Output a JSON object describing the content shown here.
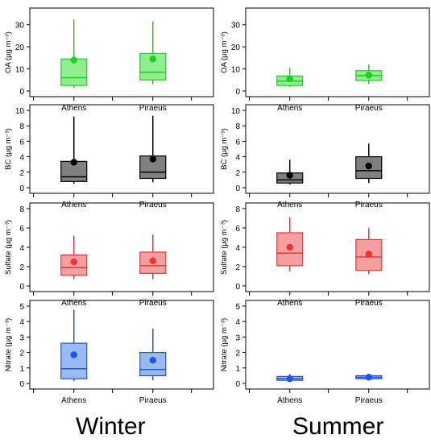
{
  "chart_data": [
    {
      "type": "box",
      "season": "Winter",
      "ylabel": "OA (µg m⁻³)",
      "categories": [
        "Athens",
        "Piraeus"
      ],
      "ylim": [
        0,
        35
      ],
      "yticks": [
        0,
        10,
        20,
        30
      ],
      "color": "#22cc22",
      "fill": "#90ee90",
      "boxes": [
        {
          "min": 1.5,
          "q1": 2.5,
          "median": 6.0,
          "q3": 14.5,
          "max": 32.5,
          "mean": 14.0
        },
        {
          "min": 3.0,
          "q1": 5.0,
          "median": 8.5,
          "q3": 17.0,
          "max": 31.5,
          "mean": 14.5
        }
      ]
    },
    {
      "type": "box",
      "season": "Summer",
      "ylabel": "OA (µg m⁻³)",
      "categories": [
        "Athens",
        "Piraeus"
      ],
      "ylim": [
        0,
        35
      ],
      "yticks": [
        0,
        10,
        20,
        30
      ],
      "color": "#22cc22",
      "fill": "#90ee90",
      "boxes": [
        {
          "min": 1.8,
          "q1": 2.5,
          "median": 4.5,
          "q3": 6.8,
          "max": 10.5,
          "mean": 5.5
        },
        {
          "min": 3.2,
          "q1": 4.8,
          "median": 7.0,
          "q3": 9.2,
          "max": 12.0,
          "mean": 7.2
        }
      ]
    },
    {
      "type": "box",
      "season": "Winter",
      "ylabel": "BC (µg m⁻³)",
      "categories": [
        "Athens",
        "Piraeus"
      ],
      "ylim": [
        0,
        10
      ],
      "yticks": [
        0,
        2,
        4,
        6,
        8,
        10
      ],
      "color": "#000000",
      "fill": "#808080",
      "boxes": [
        {
          "min": 0.5,
          "q1": 0.8,
          "median": 1.4,
          "q3": 3.4,
          "max": 9.2,
          "mean": 3.3
        },
        {
          "min": 0.7,
          "q1": 1.2,
          "median": 2.0,
          "q3": 4.1,
          "max": 9.3,
          "mean": 3.7
        }
      ]
    },
    {
      "type": "box",
      "season": "Summer",
      "ylabel": "BC (µg m⁻³)",
      "categories": [
        "Athens",
        "Piraeus"
      ],
      "ylim": [
        0,
        10
      ],
      "yticks": [
        0,
        2,
        4,
        6,
        8,
        10
      ],
      "color": "#000000",
      "fill": "#808080",
      "boxes": [
        {
          "min": 0.4,
          "q1": 0.6,
          "median": 1.0,
          "q3": 1.9,
          "max": 3.6,
          "mean": 1.6
        },
        {
          "min": 0.6,
          "q1": 1.2,
          "median": 2.2,
          "q3": 4.0,
          "max": 5.7,
          "mean": 2.8
        }
      ]
    },
    {
      "type": "box",
      "season": "Winter",
      "ylabel": "Sulfate (µg m⁻³)",
      "categories": [
        "Athens",
        "Piraeus"
      ],
      "ylim": [
        0,
        8
      ],
      "yticks": [
        0,
        2,
        4,
        6,
        8
      ],
      "color": "#ee3333",
      "fill": "#f4a0a0",
      "boxes": [
        {
          "min": 0.7,
          "q1": 1.1,
          "median": 1.9,
          "q3": 3.2,
          "max": 5.2,
          "mean": 2.5
        },
        {
          "min": 0.7,
          "q1": 1.3,
          "median": 2.1,
          "q3": 3.5,
          "max": 5.3,
          "mean": 2.6
        }
      ]
    },
    {
      "type": "box",
      "season": "Summer",
      "ylabel": "Sulfate (µg m⁻³)",
      "categories": [
        "Athens",
        "Piraeus"
      ],
      "ylim": [
        0,
        8
      ],
      "yticks": [
        0,
        2,
        4,
        6,
        8
      ],
      "color": "#ee3333",
      "fill": "#f4a0a0",
      "boxes": [
        {
          "min": 1.5,
          "q1": 2.1,
          "median": 3.4,
          "q3": 5.5,
          "max": 7.1,
          "mean": 4.0
        },
        {
          "min": 1.2,
          "q1": 1.6,
          "median": 3.0,
          "q3": 4.8,
          "max": 6.0,
          "mean": 3.3
        }
      ]
    },
    {
      "type": "box",
      "season": "Winter",
      "ylabel": "Nitrate (µg m⁻³)",
      "categories": [
        "Athens",
        "Piraeus"
      ],
      "ylim": [
        0,
        5
      ],
      "yticks": [
        0,
        1,
        2,
        3,
        4,
        5
      ],
      "color": "#2255dd",
      "fill": "#99bbf2",
      "boxes": [
        {
          "min": 0.15,
          "q1": 0.3,
          "median": 0.95,
          "q3": 2.6,
          "max": 4.75,
          "mean": 1.85
        },
        {
          "min": 0.2,
          "q1": 0.5,
          "median": 0.9,
          "q3": 2.0,
          "max": 3.55,
          "mean": 1.5
        }
      ]
    },
    {
      "type": "box",
      "season": "Summer",
      "ylabel": "Nitrate (µg m⁻³)",
      "categories": [
        "Athens",
        "Piraeus"
      ],
      "ylim": [
        0,
        5
      ],
      "yticks": [
        0,
        1,
        2,
        3,
        4,
        5
      ],
      "color": "#2255dd",
      "fill": "#99bbf2",
      "boxes": [
        {
          "min": 0.15,
          "q1": 0.2,
          "median": 0.3,
          "q3": 0.45,
          "max": 0.6,
          "mean": 0.3
        },
        {
          "min": 0.2,
          "q1": 0.3,
          "median": 0.4,
          "q3": 0.5,
          "max": 0.62,
          "mean": 0.4
        }
      ]
    }
  ],
  "labels": {
    "winter": "Winter",
    "summer": "Summer"
  }
}
